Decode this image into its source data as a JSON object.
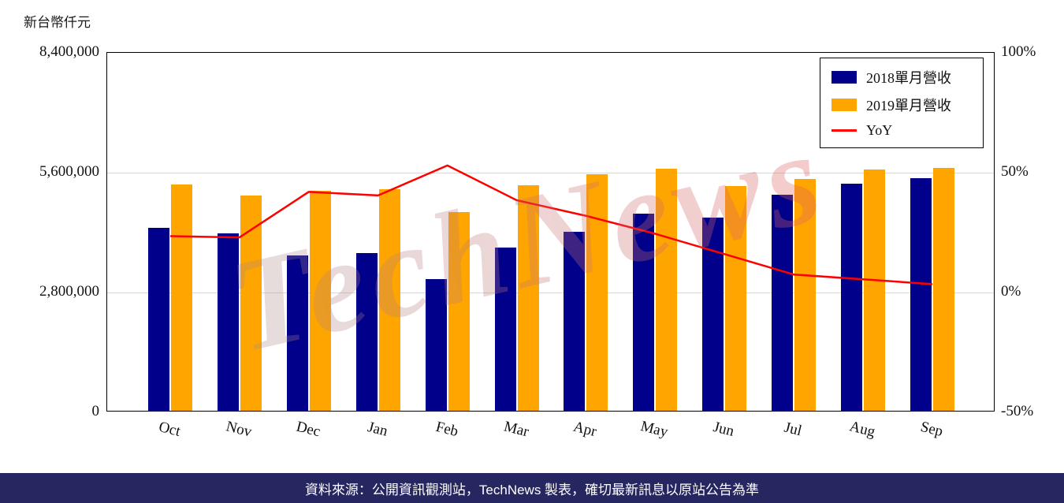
{
  "unit_label": "新台幣仟元",
  "watermark": "TechNews",
  "footer": {
    "text": "資料來源：公開資訊觀測站，TechNews 製表，確切最新訊息以原站公告為準"
  },
  "chart_data": {
    "type": "bar",
    "subtype": "grouped-bars-with-yoy-line",
    "categories": [
      "Oct",
      "Nov",
      "Dec",
      "Jan",
      "Feb",
      "Mar",
      "Apr",
      "May",
      "Jun",
      "Jul",
      "Aug",
      "Sep"
    ],
    "series": [
      {
        "name": "2018單月營收",
        "type": "bar",
        "axis": "left",
        "color": "#00008B",
        "values": [
          4270000,
          4150000,
          3630000,
          3680000,
          3080000,
          3810000,
          4180000,
          4600000,
          4510000,
          5050000,
          5300000,
          5430000
        ]
      },
      {
        "name": "2019單月營收",
        "type": "bar",
        "axis": "left",
        "color": "#FFA500",
        "values": [
          5290000,
          5030000,
          5140000,
          5180000,
          4640000,
          5270000,
          5520000,
          5650000,
          5250000,
          5420000,
          5630000,
          5670000
        ]
      },
      {
        "name": "YoY",
        "type": "line",
        "axis": "right",
        "color": "#FF0000",
        "values": [
          23.5,
          23,
          42,
          40.5,
          53,
          38.5,
          32,
          24.5,
          16,
          7.5,
          5.5,
          3.5
        ]
      }
    ],
    "left_axis": {
      "title": "新台幣仟元",
      "ticks": [
        "8,400,000",
        "5,600,000",
        "2,800,000",
        "0"
      ],
      "values": [
        8400000,
        5600000,
        2800000,
        0
      ],
      "min": 0,
      "max": 8400000
    },
    "right_axis": {
      "ticks": [
        "100%",
        "50%",
        "0%",
        "-50%"
      ],
      "values": [
        100,
        50,
        0,
        -50
      ],
      "min": -50,
      "max": 100
    },
    "legend_position": "top-right",
    "grid": true
  }
}
